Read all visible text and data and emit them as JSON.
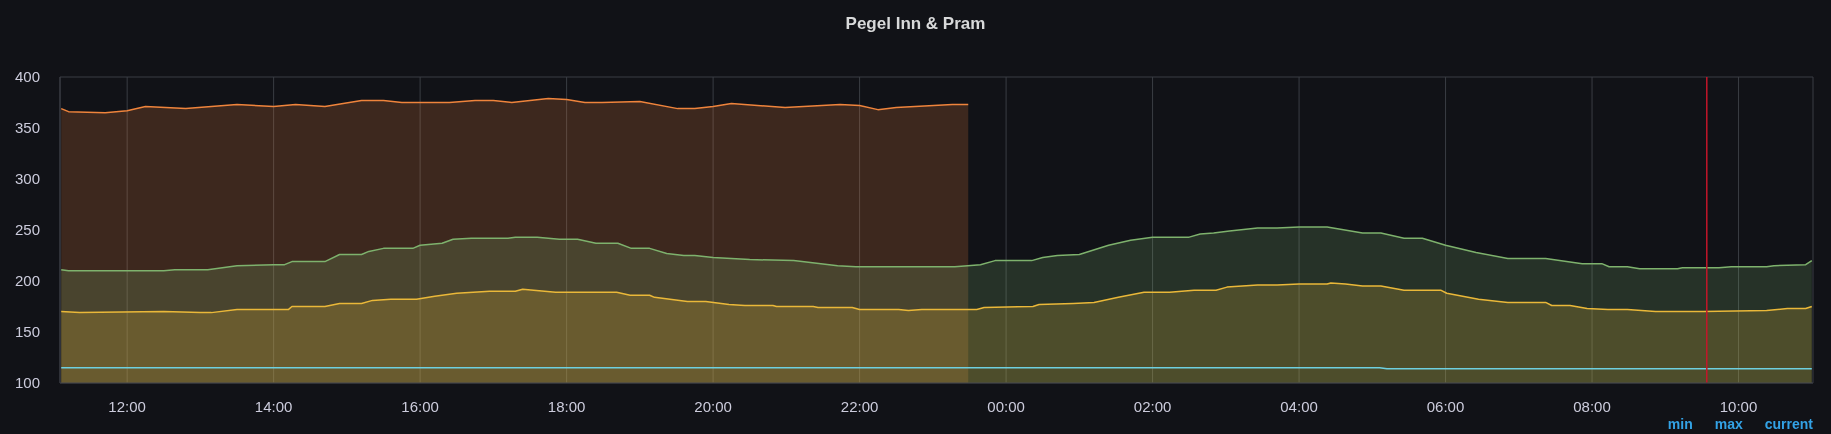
{
  "chart_data": {
    "type": "area",
    "title": "Pegel Inn & Pram",
    "xlim": [
      "--01-01T11:05",
      "--01-02T11:01"
    ],
    "xticks": [
      {
        "value": "--01-01T12:00",
        "label": "12:00"
      },
      {
        "value": "--01-01T14:00",
        "label": "14:00"
      },
      {
        "value": "--01-01T16:00",
        "label": "16:00"
      },
      {
        "value": "--01-01T18:00",
        "label": "18:00"
      },
      {
        "value": "--01-01T20:00",
        "label": "20:00"
      },
      {
        "value": "--01-01T22:00",
        "label": "22:00"
      },
      {
        "value": "--01-02T00:00",
        "label": "00:00"
      },
      {
        "value": "--01-02T02:00",
        "label": "02:00"
      },
      {
        "value": "--01-02T04:00",
        "label": "04:00"
      },
      {
        "value": "--01-02T06:00",
        "label": "06:00"
      },
      {
        "value": "--01-02T08:00",
        "label": "08:00"
      },
      {
        "value": "--01-02T10:00",
        "label": "10:00"
      }
    ],
    "ylim": [
      100,
      400
    ],
    "yticks": [
      100,
      150,
      200,
      250,
      300,
      350,
      400
    ],
    "grid": true,
    "legend": false,
    "marker": "none",
    "line_style": "solid",
    "series": [
      {
        "color": "#ef843c",
        "x": [
          "--01-01T11:06",
          "--01-01T11:12",
          "--01-01T11:42",
          "--01-01T12:00",
          "--01-01T12:15",
          "--01-01T12:48",
          "--01-01T13:30",
          "--01-01T14:00",
          "--01-01T14:18",
          "--01-01T14:42",
          "--01-01T15:12",
          "--01-01T15:30",
          "--01-01T15:45",
          "--01-01T16:00",
          "--01-01T16:24",
          "--01-01T16:45",
          "--01-01T17:00",
          "--01-01T17:15",
          "--01-01T17:45",
          "--01-01T18:00",
          "--01-01T18:15",
          "--01-01T18:29",
          "--01-01T19:00",
          "--01-01T19:31",
          "--01-01T19:45",
          "--01-01T20:00",
          "--01-01T20:15",
          "--01-01T20:59",
          "--01-01T21:44",
          "--01-01T22:00",
          "--01-01T22:15",
          "--01-01T22:30",
          "--01-01T23:16",
          "--01-01T23:29"
        ],
        "values": [
          369,
          366,
          365,
          367,
          371,
          369,
          373,
          371,
          373,
          371,
          377,
          377,
          375,
          375,
          375,
          377,
          377,
          375,
          379,
          378,
          375,
          375,
          376,
          369,
          369,
          371,
          374,
          370,
          373,
          372,
          368,
          370,
          373,
          373
        ]
      },
      {
        "color": "#7eb26d",
        "x": [
          "--01-01T11:06",
          "--01-01T11:12",
          "--01-01T12:30",
          "--01-01T12:39",
          "--01-01T13:06",
          "--01-01T13:30",
          "--01-01T14:00",
          "--01-01T14:09",
          "--01-01T14:15",
          "--01-01T14:24",
          "--01-01T14:42",
          "--01-01T14:54",
          "--01-01T15:12",
          "--01-01T15:18",
          "--01-01T15:30",
          "--01-01T15:54",
          "--01-01T16:00",
          "--01-01T16:18",
          "--01-01T16:27",
          "--01-01T16:42",
          "--01-01T17:12",
          "--01-01T17:18",
          "--01-01T17:36",
          "--01-01T17:54",
          "--01-01T18:09",
          "--01-01T18:24",
          "--01-01T18:42",
          "--01-01T18:53",
          "--01-01T19:08",
          "--01-01T19:22",
          "--01-01T19:36",
          "--01-01T19:45",
          "--01-01T20:00",
          "--01-01T20:30",
          "--01-01T21:06",
          "--01-01T21:42",
          "--01-01T21:57",
          "--01-01T23:18",
          "--01-01T23:39",
          "--01-01T23:51",
          "--01-02T00:21",
          "--01-02T00:30",
          "--01-02T00:42",
          "--01-02T01:00",
          "--01-02T01:24",
          "--01-02T01:42",
          "--01-02T02:00",
          "--01-02T02:30",
          "--01-02T02:39",
          "--01-02T02:50",
          "--01-02T03:03",
          "--01-02T03:26",
          "--01-02T03:42",
          "--01-02T04:00",
          "--01-02T04:23",
          "--01-02T04:52",
          "--01-02T05:07",
          "--01-02T05:26",
          "--01-02T05:41",
          "--01-02T06:00",
          "--01-02T06:25",
          "--01-02T06:51",
          "--01-02T07:22",
          "--01-02T07:52",
          "--01-02T08:08",
          "--01-02T08:14",
          "--01-02T08:29",
          "--01-02T08:39",
          "--01-02T09:10",
          "--01-02T09:14",
          "--01-02T09:44",
          "--01-02T09:54",
          "--01-02T10:23",
          "--01-02T10:29",
          "--01-02T10:55",
          "--01-02T11:00"
        ],
        "values": [
          211,
          210,
          210,
          211,
          211,
          215,
          216,
          216,
          219,
          219,
          219,
          226,
          226,
          229,
          232,
          232,
          235,
          237,
          241,
          242,
          242,
          243,
          243,
          241,
          241,
          237,
          237,
          232,
          232,
          227,
          225,
          225,
          223,
          221,
          220,
          215,
          214,
          214,
          216,
          220,
          220,
          223,
          225,
          226,
          235,
          240,
          243,
          243,
          246,
          247,
          249,
          252,
          252,
          253,
          253,
          247,
          247,
          242,
          242,
          235,
          228,
          222,
          222,
          217,
          217,
          214,
          214,
          212,
          212,
          213,
          213,
          214,
          214,
          215,
          216,
          220
        ]
      },
      {
        "color": "#eab839",
        "x": [
          "--01-01T11:06",
          "--01-01T11:21",
          "--01-01T12:30",
          "--01-01T13:00",
          "--01-01T13:09",
          "--01-01T13:30",
          "--01-01T14:12",
          "--01-01T14:15",
          "--01-01T14:42",
          "--01-01T14:54",
          "--01-01T15:12",
          "--01-01T15:21",
          "--01-01T15:36",
          "--01-01T15:57",
          "--01-01T16:12",
          "--01-01T16:30",
          "--01-01T16:57",
          "--01-01T17:18",
          "--01-01T17:24",
          "--01-01T17:51",
          "--01-01T18:30",
          "--01-01T18:41",
          "--01-01T18:52",
          "--01-01T19:08",
          "--01-01T19:12",
          "--01-01T19:39",
          "--01-01T19:54",
          "--01-01T20:13",
          "--01-01T20:26",
          "--01-01T20:49",
          "--01-01T20:52",
          "--01-01T21:22",
          "--01-01T21:26",
          "--01-01T21:54",
          "--01-01T22:00",
          "--01-01T22:32",
          "--01-01T22:40",
          "--01-01T22:51",
          "--01-01T23:36",
          "--01-01T23:42",
          "--01-02T00:22",
          "--01-02T00:27",
          "--01-02T00:55",
          "--01-02T01:12",
          "--01-02T01:32",
          "--01-02T01:53",
          "--01-02T02:14",
          "--01-02T02:34",
          "--01-02T02:52",
          "--01-02T03:01",
          "--01-02T03:26",
          "--01-02T03:42",
          "--01-02T04:00",
          "--01-02T04:23",
          "--01-02T04:26",
          "--01-02T04:38",
          "--01-02T04:52",
          "--01-02T05:07",
          "--01-02T05:26",
          "--01-02T05:56",
          "--01-02T06:01",
          "--01-02T06:27",
          "--01-02T06:51",
          "--01-02T07:22",
          "--01-02T07:27",
          "--01-02T07:42",
          "--01-02T07:56",
          "--01-02T08:13",
          "--01-02T08:29",
          "--01-02T08:52",
          "--01-02T09:31",
          "--01-02T10:23",
          "--01-02T10:40",
          "--01-02T10:55",
          "--01-02T11:00"
        ],
        "values": [
          170,
          169,
          170,
          169,
          169,
          172,
          172,
          175,
          175,
          178,
          178,
          181,
          182,
          182,
          185,
          188,
          190,
          190,
          192,
          189,
          189,
          189,
          186,
          186,
          184,
          180,
          180,
          177,
          176,
          176,
          175,
          175,
          174,
          174,
          172,
          172,
          171,
          172,
          172,
          174,
          175,
          177,
          178,
          179,
          184,
          189,
          189,
          191,
          191,
          194,
          196,
          196,
          197,
          197,
          198,
          197,
          195,
          195,
          191,
          191,
          188,
          182,
          179,
          179,
          176,
          176,
          173,
          172,
          172,
          170,
          170,
          171,
          173,
          173,
          175
        ]
      },
      {
        "type": "line",
        "color": "#6ed0e0",
        "x": [
          "--01-01T11:06",
          "--01-02T05:06",
          "--01-02T05:12",
          "--01-02T11:00"
        ],
        "values": [
          115,
          115,
          114,
          114
        ]
      }
    ],
    "ref_lines": [
      {
        "axis": "x",
        "value": "--01-02T09:34",
        "color": "#c4162a"
      }
    ],
    "annotations": [
      "min",
      "max",
      "current"
    ]
  }
}
